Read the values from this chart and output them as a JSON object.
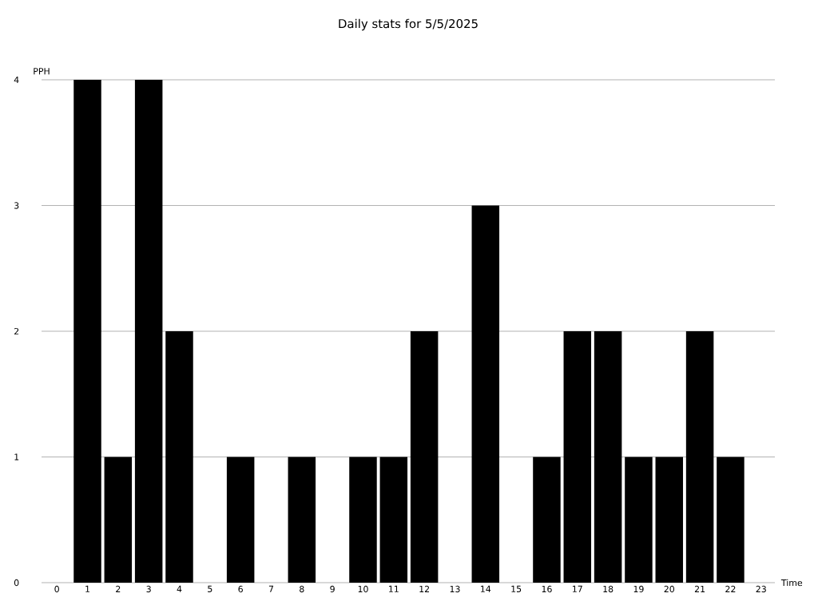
{
  "chart_data": {
    "type": "bar",
    "title": "Daily stats for 5/5/2025",
    "xlabel": "Time",
    "ylabel": "PPH",
    "categories": [
      "0",
      "1",
      "2",
      "3",
      "4",
      "5",
      "6",
      "7",
      "8",
      "9",
      "10",
      "11",
      "12",
      "13",
      "14",
      "15",
      "16",
      "17",
      "18",
      "19",
      "20",
      "21",
      "22",
      "23"
    ],
    "values": [
      0,
      4,
      1,
      4,
      2,
      0,
      1,
      0,
      1,
      0,
      1,
      1,
      2,
      0,
      3,
      0,
      1,
      2,
      2,
      1,
      1,
      2,
      1,
      0
    ],
    "color": "#000000",
    "ylim": [
      0,
      4
    ],
    "yticks": [
      0,
      1,
      2,
      3,
      4
    ],
    "grid": "y"
  }
}
